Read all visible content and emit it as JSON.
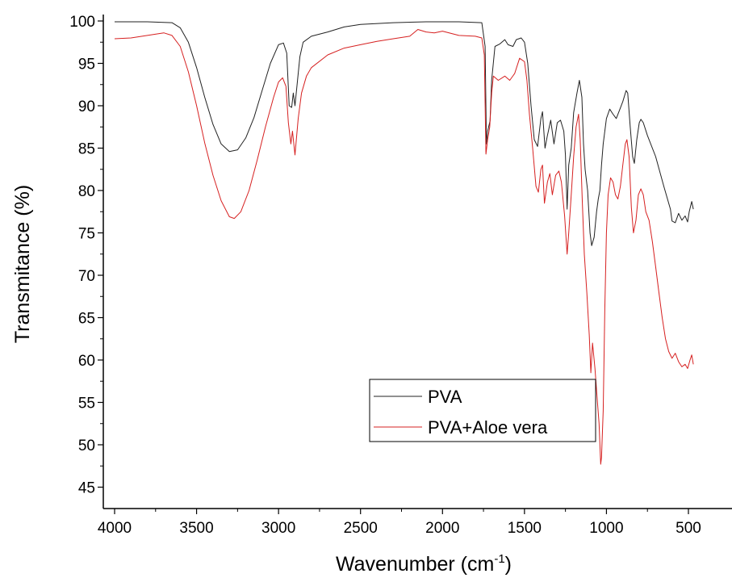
{
  "chart_data": {
    "type": "line",
    "title": "",
    "xlabel": "Wavenumber (cm",
    "xlabel_sup": "-1",
    "xlabel_end": ")",
    "ylabel": "Transmitance (%)",
    "xlim": [
      4000,
      500
    ],
    "x_reversed": true,
    "ylim": [
      45,
      100
    ],
    "x_ticks": [
      4000,
      3500,
      3000,
      2500,
      2000,
      1500,
      1000,
      500
    ],
    "x_tick_labels": [
      "4000",
      "3500",
      "3000",
      "2500",
      "2000",
      "1500",
      "1000",
      "500"
    ],
    "y_ticks": [
      45,
      50,
      55,
      60,
      65,
      70,
      75,
      80,
      85,
      90,
      95,
      100
    ],
    "y_tick_labels": [
      "45",
      "50",
      "55",
      "60",
      "65",
      "70",
      "75",
      "80",
      "85",
      "90",
      "95",
      "100"
    ],
    "grid": false,
    "legend_position": "bottom-center",
    "series": [
      {
        "name": "PVA",
        "color": "#222222",
        "points": [
          [
            4000,
            99.9
          ],
          [
            3800,
            99.9
          ],
          [
            3650,
            99.8
          ],
          [
            3600,
            99.2
          ],
          [
            3550,
            97.5
          ],
          [
            3500,
            94.5
          ],
          [
            3450,
            91.0
          ],
          [
            3400,
            87.8
          ],
          [
            3350,
            85.5
          ],
          [
            3300,
            84.6
          ],
          [
            3250,
            84.8
          ],
          [
            3200,
            86.2
          ],
          [
            3150,
            88.6
          ],
          [
            3100,
            91.8
          ],
          [
            3050,
            95.0
          ],
          [
            3000,
            97.2
          ],
          [
            2970,
            97.4
          ],
          [
            2950,
            96.2
          ],
          [
            2935,
            90.0
          ],
          [
            2920,
            89.8
          ],
          [
            2910,
            91.5
          ],
          [
            2900,
            90.0
          ],
          [
            2870,
            95.8
          ],
          [
            2850,
            97.5
          ],
          [
            2800,
            98.2
          ],
          [
            2700,
            98.7
          ],
          [
            2600,
            99.3
          ],
          [
            2500,
            99.6
          ],
          [
            2300,
            99.8
          ],
          [
            2100,
            99.9
          ],
          [
            1900,
            99.9
          ],
          [
            1760,
            99.8
          ],
          [
            1740,
            97.0
          ],
          [
            1732,
            85.5
          ],
          [
            1725,
            87.0
          ],
          [
            1710,
            88.2
          ],
          [
            1700,
            93.0
          ],
          [
            1680,
            97.0
          ],
          [
            1650,
            97.3
          ],
          [
            1620,
            97.8
          ],
          [
            1600,
            97.2
          ],
          [
            1570,
            97.0
          ],
          [
            1550,
            97.8
          ],
          [
            1520,
            98.0
          ],
          [
            1500,
            97.5
          ],
          [
            1480,
            95.0
          ],
          [
            1460,
            90.0
          ],
          [
            1440,
            86.0
          ],
          [
            1420,
            85.2
          ],
          [
            1400,
            88.5
          ],
          [
            1390,
            89.3
          ],
          [
            1375,
            85.0
          ],
          [
            1360,
            86.5
          ],
          [
            1340,
            88.3
          ],
          [
            1320,
            85.5
          ],
          [
            1300,
            88.0
          ],
          [
            1280,
            88.3
          ],
          [
            1260,
            87.0
          ],
          [
            1250,
            84.2
          ],
          [
            1240,
            77.8
          ],
          [
            1230,
            83.0
          ],
          [
            1215,
            85.0
          ],
          [
            1200,
            89.2
          ],
          [
            1180,
            91.5
          ],
          [
            1165,
            93.0
          ],
          [
            1150,
            91.0
          ],
          [
            1140,
            85.5
          ],
          [
            1130,
            82.5
          ],
          [
            1115,
            80.0
          ],
          [
            1100,
            75.0
          ],
          [
            1090,
            73.5
          ],
          [
            1075,
            74.5
          ],
          [
            1060,
            77.5
          ],
          [
            1050,
            79.0
          ],
          [
            1040,
            80.0
          ],
          [
            1030,
            83.0
          ],
          [
            1020,
            85.5
          ],
          [
            1000,
            88.5
          ],
          [
            980,
            89.6
          ],
          [
            960,
            89.0
          ],
          [
            940,
            88.5
          ],
          [
            920,
            89.5
          ],
          [
            900,
            90.5
          ],
          [
            880,
            91.8
          ],
          [
            870,
            91.5
          ],
          [
            855,
            87.5
          ],
          [
            840,
            84.0
          ],
          [
            830,
            83.2
          ],
          [
            815,
            86.0
          ],
          [
            800,
            88.0
          ],
          [
            790,
            88.4
          ],
          [
            775,
            88.0
          ],
          [
            750,
            86.5
          ],
          [
            700,
            84.0
          ],
          [
            650,
            80.5
          ],
          [
            610,
            77.8
          ],
          [
            600,
            76.4
          ],
          [
            580,
            76.2
          ],
          [
            560,
            77.3
          ],
          [
            540,
            76.5
          ],
          [
            520,
            77.0
          ],
          [
            505,
            76.3
          ],
          [
            495,
            77.5
          ],
          [
            480,
            78.7
          ],
          [
            470,
            77.8
          ]
        ]
      },
      {
        "name": "PVA+Aloe vera",
        "color": "#d62020",
        "points": [
          [
            4000,
            97.9
          ],
          [
            3900,
            98.0
          ],
          [
            3800,
            98.3
          ],
          [
            3700,
            98.6
          ],
          [
            3650,
            98.3
          ],
          [
            3600,
            97.0
          ],
          [
            3550,
            94.0
          ],
          [
            3500,
            90.0
          ],
          [
            3450,
            85.6
          ],
          [
            3400,
            81.8
          ],
          [
            3350,
            78.8
          ],
          [
            3300,
            76.9
          ],
          [
            3270,
            76.7
          ],
          [
            3230,
            77.5
          ],
          [
            3180,
            80.0
          ],
          [
            3130,
            83.6
          ],
          [
            3080,
            87.5
          ],
          [
            3030,
            91.0
          ],
          [
            3000,
            92.8
          ],
          [
            2975,
            93.3
          ],
          [
            2955,
            92.3
          ],
          [
            2940,
            88.0
          ],
          [
            2925,
            85.5
          ],
          [
            2915,
            87.0
          ],
          [
            2900,
            84.2
          ],
          [
            2880,
            88.5
          ],
          [
            2860,
            91.5
          ],
          [
            2830,
            93.5
          ],
          [
            2800,
            94.5
          ],
          [
            2700,
            96.0
          ],
          [
            2600,
            96.8
          ],
          [
            2500,
            97.2
          ],
          [
            2400,
            97.6
          ],
          [
            2300,
            97.9
          ],
          [
            2200,
            98.2
          ],
          [
            2150,
            99.0
          ],
          [
            2100,
            98.7
          ],
          [
            2050,
            98.6
          ],
          [
            2000,
            98.8
          ],
          [
            1900,
            98.3
          ],
          [
            1800,
            98.2
          ],
          [
            1760,
            98.0
          ],
          [
            1745,
            96.0
          ],
          [
            1735,
            84.3
          ],
          [
            1725,
            86.0
          ],
          [
            1712,
            87.5
          ],
          [
            1700,
            91.5
          ],
          [
            1690,
            93.5
          ],
          [
            1660,
            93.0
          ],
          [
            1620,
            93.5
          ],
          [
            1590,
            93.0
          ],
          [
            1560,
            93.8
          ],
          [
            1530,
            95.6
          ],
          [
            1500,
            95.2
          ],
          [
            1485,
            93.0
          ],
          [
            1470,
            89.0
          ],
          [
            1450,
            85.0
          ],
          [
            1430,
            80.5
          ],
          [
            1415,
            79.8
          ],
          [
            1400,
            82.5
          ],
          [
            1390,
            83.0
          ],
          [
            1378,
            78.5
          ],
          [
            1360,
            81.0
          ],
          [
            1345,
            82.0
          ],
          [
            1330,
            79.5
          ],
          [
            1310,
            81.8
          ],
          [
            1290,
            82.3
          ],
          [
            1275,
            81.0
          ],
          [
            1255,
            77.0
          ],
          [
            1240,
            72.5
          ],
          [
            1230,
            75.0
          ],
          [
            1215,
            79.5
          ],
          [
            1200,
            84.0
          ],
          [
            1185,
            87.5
          ],
          [
            1170,
            89.0
          ],
          [
            1160,
            86.0
          ],
          [
            1148,
            79.0
          ],
          [
            1135,
            72.5
          ],
          [
            1120,
            68.0
          ],
          [
            1105,
            63.0
          ],
          [
            1095,
            58.5
          ],
          [
            1085,
            62.0
          ],
          [
            1070,
            59.0
          ],
          [
            1055,
            55.0
          ],
          [
            1045,
            52.5
          ],
          [
            1035,
            47.7
          ],
          [
            1030,
            48.5
          ],
          [
            1020,
            54.0
          ],
          [
            1010,
            66.0
          ],
          [
            1000,
            75.0
          ],
          [
            990,
            79.5
          ],
          [
            975,
            81.5
          ],
          [
            960,
            81.0
          ],
          [
            945,
            79.5
          ],
          [
            930,
            79.0
          ],
          [
            915,
            80.5
          ],
          [
            900,
            83.0
          ],
          [
            885,
            85.5
          ],
          [
            875,
            86.0
          ],
          [
            862,
            84.0
          ],
          [
            848,
            78.0
          ],
          [
            835,
            75.0
          ],
          [
            820,
            76.5
          ],
          [
            805,
            79.5
          ],
          [
            790,
            80.2
          ],
          [
            775,
            79.5
          ],
          [
            760,
            77.5
          ],
          [
            740,
            76.5
          ],
          [
            720,
            74.0
          ],
          [
            700,
            71.0
          ],
          [
            680,
            68.0
          ],
          [
            660,
            65.0
          ],
          [
            640,
            62.5
          ],
          [
            620,
            61.0
          ],
          [
            600,
            60.2
          ],
          [
            580,
            60.8
          ],
          [
            560,
            59.8
          ],
          [
            540,
            59.2
          ],
          [
            520,
            59.5
          ],
          [
            505,
            59.0
          ],
          [
            490,
            60.0
          ],
          [
            480,
            60.6
          ],
          [
            470,
            59.5
          ]
        ]
      }
    ]
  }
}
